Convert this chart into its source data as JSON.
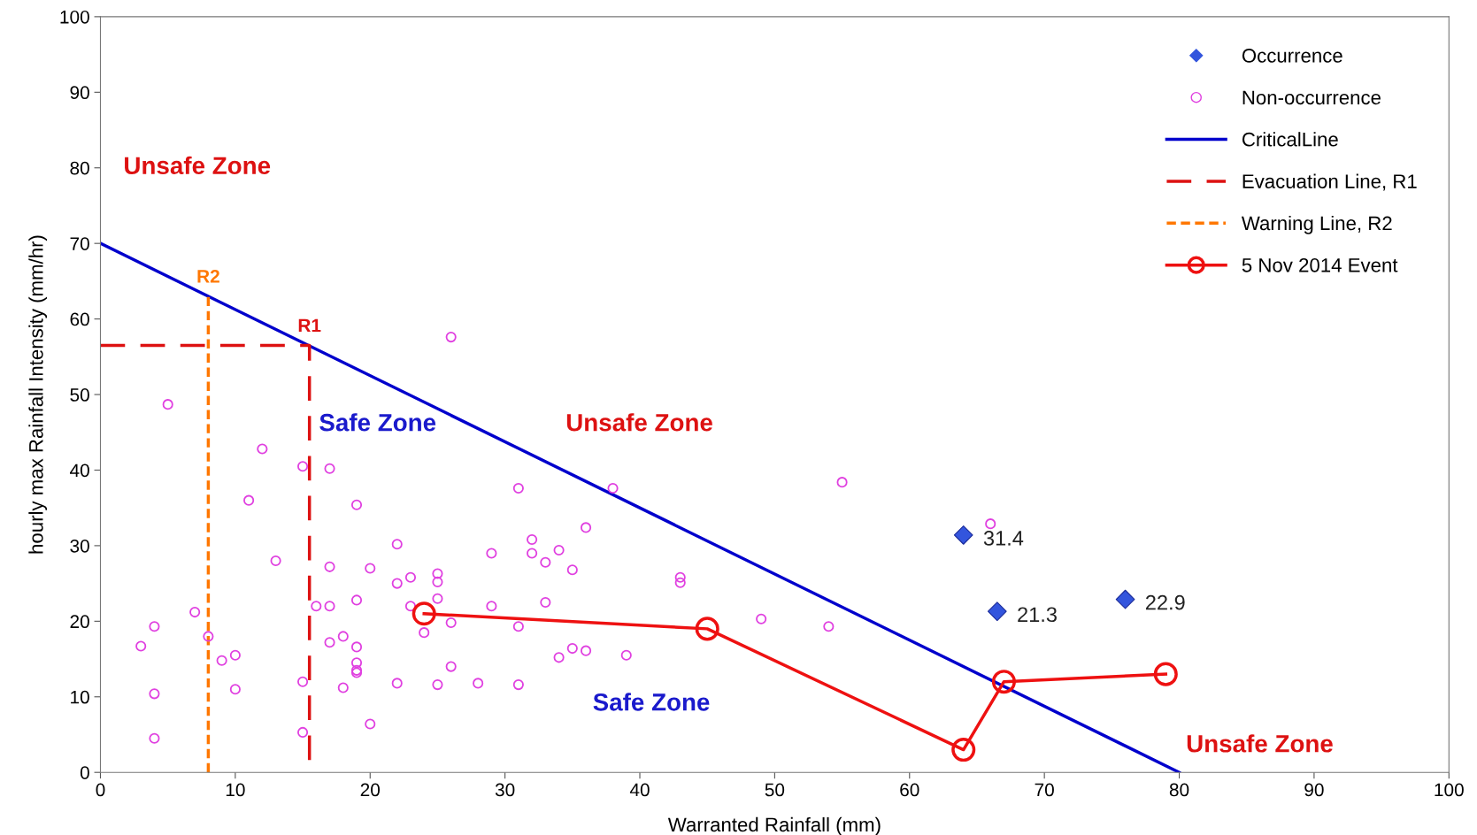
{
  "chart_data": {
    "type": "scatter",
    "xlabel": "Warranted Rainfall (mm)",
    "ylabel": "hourly max Rainfall Intensity (mm/hr)",
    "xlim": [
      0,
      100
    ],
    "ylim": [
      0,
      100
    ],
    "xticks": [
      0,
      10,
      20,
      30,
      40,
      50,
      60,
      70,
      80,
      90,
      100
    ],
    "yticks": [
      0,
      10,
      20,
      30,
      40,
      50,
      60,
      70,
      80,
      90,
      100
    ],
    "grid": false,
    "legend": "top right",
    "series": [
      {
        "name": "Occurrence",
        "type": "scatter",
        "marker": "diamond",
        "color": "#3355dd",
        "x": [
          64,
          66.5,
          76
        ],
        "values": [
          31.4,
          21.3,
          22.9
        ],
        "value_labels": [
          "31.4",
          "21.3",
          "22.9"
        ]
      },
      {
        "name": "Non-occurrence",
        "type": "scatter",
        "marker": "circle",
        "color": "#e040e0",
        "x": [
          5,
          12,
          15,
          17,
          11,
          19,
          26,
          13,
          17,
          20,
          22,
          3,
          4,
          7,
          8,
          9,
          10,
          10,
          4,
          4,
          15,
          15,
          16,
          17,
          17,
          18,
          18,
          19,
          19,
          19,
          19,
          19,
          20,
          22,
          22,
          23,
          23,
          24,
          25,
          25,
          25,
          25,
          26,
          26,
          28,
          29,
          29,
          31,
          31,
          31,
          32,
          32,
          33,
          33,
          34,
          34,
          35,
          35,
          36,
          36,
          38,
          39,
          43,
          43,
          49,
          54,
          55,
          66
        ],
        "values": [
          48.7,
          42.8,
          40.5,
          40.2,
          36,
          35.4,
          57.6,
          28,
          27.2,
          27,
          30.2,
          16.7,
          19.3,
          21.2,
          18,
          14.8,
          15.5,
          11,
          10.4,
          4.5,
          12,
          5.3,
          22,
          22,
          17.2,
          18,
          11.2,
          22.8,
          16.6,
          14.5,
          13.5,
          13.2,
          6.4,
          25,
          11.8,
          25.8,
          22,
          18.5,
          26.3,
          25.2,
          23,
          11.6,
          19.8,
          14,
          11.8,
          29,
          22,
          37.6,
          19.3,
          11.6,
          30.8,
          29,
          27.8,
          22.5,
          29.4,
          15.2,
          26.8,
          16.4,
          32.4,
          16.1,
          37.6,
          15.5,
          25.8,
          25.1,
          20.3,
          19.3,
          38.4,
          32.9
        ]
      },
      {
        "name": "CriticalLine",
        "type": "line",
        "marker": "none",
        "line_style": "solid",
        "color": "#0000cc",
        "x": [
          0,
          80
        ],
        "values": [
          70,
          0
        ]
      },
      {
        "name": "Evacuation Line, R1",
        "type": "line",
        "marker": "none",
        "line_style": "dashed",
        "color": "#dd1111",
        "x": [
          0,
          15.5,
          15.5
        ],
        "values": [
          56.5,
          56.5,
          0
        ]
      },
      {
        "name": "Warning Line, R2",
        "type": "line",
        "marker": "none",
        "line_style": "dotted",
        "color": "#ff7700",
        "x": [
          8,
          8
        ],
        "values": [
          0,
          63
        ]
      },
      {
        "name": "5 Nov 2014 Event",
        "type": "line",
        "marker": "circle",
        "line_style": "solid",
        "color": "#ee1111",
        "x": [
          24,
          45,
          64,
          67,
          79
        ],
        "values": [
          21,
          19,
          3,
          12,
          13
        ]
      }
    ],
    "annotations": [
      "Unsafe Zone",
      "Safe Zone",
      "Unsafe Zone",
      "Safe Zone",
      "Unsafe Zone",
      {
        "text": "R1",
        "x": 15.5,
        "y": 56.5
      },
      {
        "text": "R2",
        "x": 8,
        "y": 63
      }
    ]
  }
}
